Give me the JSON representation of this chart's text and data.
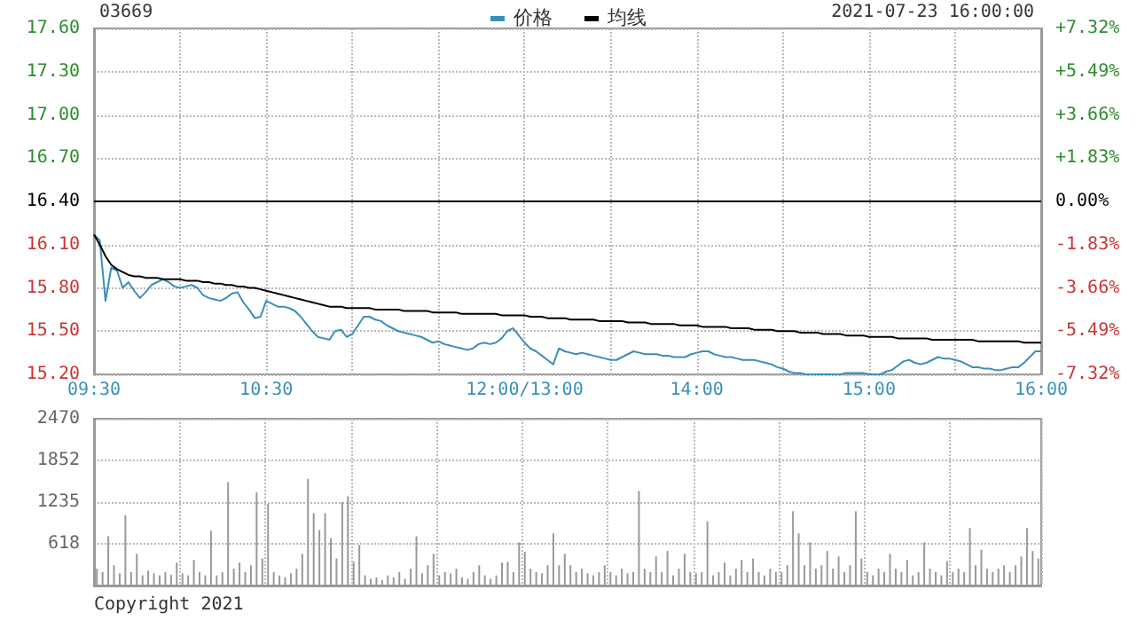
{
  "chart_data": [
    {
      "type": "line",
      "title": "03669",
      "annotations": [
        "2021-07-23 16:00:00"
      ],
      "legend": "top",
      "grid": true,
      "marker": "none",
      "line_style": "solid",
      "categories": [
        "09:30",
        null,
        null,
        null,
        null,
        null,
        null,
        null,
        null,
        null,
        null,
        null,
        null,
        null,
        null,
        null,
        null,
        null,
        null,
        null,
        null,
        null,
        null,
        null,
        null,
        null,
        null,
        null,
        null,
        null,
        "10:30",
        null,
        null,
        null,
        null,
        null,
        null,
        null,
        null,
        null,
        null,
        null,
        null,
        null,
        null,
        null,
        null,
        null,
        null,
        null,
        null,
        null,
        null,
        null,
        null,
        null,
        null,
        null,
        null,
        null,
        null,
        null,
        null,
        null,
        null,
        null,
        null,
        null,
        null,
        null,
        null,
        null,
        null,
        null,
        null,
        "12:00/13:00",
        null,
        null,
        null,
        null,
        null,
        null,
        null,
        null,
        null,
        null,
        null,
        null,
        null,
        null,
        null,
        null,
        null,
        null,
        null,
        null,
        null,
        null,
        null,
        null,
        null,
        null,
        null,
        null,
        null,
        "14:00",
        null,
        null,
        null,
        null,
        null,
        null,
        null,
        null,
        null,
        null,
        null,
        null,
        null,
        null,
        null,
        null,
        null,
        null,
        null,
        null,
        null,
        null,
        null,
        null,
        null,
        null,
        null,
        null,
        null,
        "15:00",
        null,
        null,
        null,
        null,
        null,
        null,
        null,
        null,
        null,
        null,
        null,
        null,
        null,
        null,
        null,
        null,
        null,
        null,
        null,
        null,
        null,
        null,
        null,
        null,
        null,
        null,
        null,
        null,
        null,
        "16:00"
      ],
      "ylim": [
        15.2,
        17.6
      ],
      "yticks": [
        {
          "value": 15.2,
          "label": "15.20"
        },
        {
          "value": 15.5,
          "label": "15.50"
        },
        {
          "value": 15.8,
          "label": "15.80"
        },
        {
          "value": 16.1,
          "label": "16.10"
        },
        {
          "value": 16.4,
          "label": "16.40"
        },
        {
          "value": 16.7,
          "label": "16.70"
        },
        {
          "value": 17.0,
          "label": "17.00"
        },
        {
          "value": 17.3,
          "label": "17.30"
        },
        {
          "value": 17.6,
          "label": "17.60"
        }
      ],
      "y2lim": [
        -7.32,
        7.32
      ],
      "y2ticks": [
        {
          "value": -7.32,
          "label": "-7.32%"
        },
        {
          "value": -5.49,
          "label": "-5.49%"
        },
        {
          "value": -3.66,
          "label": "-3.66%"
        },
        {
          "value": -1.83,
          "label": "-1.83%"
        },
        {
          "value": 0,
          "label": "0.00%"
        },
        {
          "value": 1.83,
          "label": "+1.83%"
        },
        {
          "value": 3.66,
          "label": "+3.66%"
        },
        {
          "value": 5.49,
          "label": "+5.49%"
        },
        {
          "value": 7.32,
          "label": "+7.32%"
        }
      ],
      "ref_lines": [
        {
          "axis": "y",
          "value": 16.4,
          "color": "#000000"
        }
      ],
      "series": [
        {
          "name": "价格",
          "color": "#3a8fb7",
          "values": [
            16.17,
            16.13,
            15.71,
            15.94,
            15.92,
            15.8,
            15.84,
            15.78,
            15.73,
            15.77,
            15.82,
            15.84,
            15.86,
            15.84,
            15.81,
            15.8,
            15.81,
            15.82,
            15.8,
            15.75,
            15.73,
            15.72,
            15.71,
            15.73,
            15.76,
            15.77,
            15.7,
            15.65,
            15.59,
            15.6,
            15.71,
            15.69,
            15.67,
            15.67,
            15.66,
            15.64,
            15.6,
            15.55,
            15.5,
            15.46,
            15.45,
            15.44,
            15.5,
            15.51,
            15.46,
            15.48,
            15.54,
            15.6,
            15.6,
            15.58,
            15.57,
            15.54,
            15.52,
            15.5,
            15.49,
            15.48,
            15.47,
            15.46,
            15.44,
            15.42,
            15.43,
            15.41,
            15.4,
            15.39,
            15.38,
            15.37,
            15.38,
            15.41,
            15.42,
            15.41,
            15.42,
            15.45,
            15.5,
            15.52,
            15.47,
            15.42,
            15.38,
            15.36,
            15.33,
            15.3,
            15.27,
            15.38,
            15.36,
            15.35,
            15.34,
            15.35,
            15.34,
            15.33,
            15.32,
            15.31,
            15.3,
            15.3,
            15.32,
            15.34,
            15.36,
            15.35,
            15.34,
            15.34,
            15.34,
            15.33,
            15.33,
            15.32,
            15.32,
            15.32,
            15.34,
            15.35,
            15.36,
            15.36,
            15.34,
            15.33,
            15.32,
            15.32,
            15.31,
            15.3,
            15.3,
            15.3,
            15.29,
            15.28,
            15.27,
            15.25,
            15.24,
            15.22,
            15.21,
            15.21,
            15.2,
            15.2,
            15.2,
            15.2,
            15.2,
            15.2,
            15.2,
            15.21,
            15.21,
            15.21,
            15.21,
            15.2,
            15.2,
            15.2,
            15.22,
            15.23,
            15.26,
            15.29,
            15.3,
            15.28,
            15.27,
            15.28,
            15.3,
            15.32,
            15.31,
            15.31,
            15.3,
            15.29,
            15.27,
            15.25,
            15.25,
            15.24,
            15.24,
            15.23,
            15.23,
            15.24,
            15.25,
            15.25,
            15.28,
            15.32,
            15.36,
            15.36
          ]
        },
        {
          "name": "均线",
          "color": "#000000",
          "values": [
            16.17,
            16.1,
            16.02,
            15.96,
            15.93,
            15.91,
            15.89,
            15.88,
            15.88,
            15.87,
            15.87,
            15.87,
            15.86,
            15.86,
            15.86,
            15.86,
            15.85,
            15.85,
            15.85,
            15.84,
            15.84,
            15.83,
            15.83,
            15.82,
            15.82,
            15.81,
            15.81,
            15.8,
            15.8,
            15.79,
            15.78,
            15.77,
            15.76,
            15.75,
            15.74,
            15.73,
            15.72,
            15.71,
            15.7,
            15.69,
            15.68,
            15.67,
            15.67,
            15.67,
            15.66,
            15.66,
            15.66,
            15.66,
            15.66,
            15.65,
            15.65,
            15.65,
            15.65,
            15.65,
            15.64,
            15.64,
            15.64,
            15.64,
            15.64,
            15.63,
            15.63,
            15.63,
            15.63,
            15.63,
            15.62,
            15.62,
            15.62,
            15.62,
            15.62,
            15.62,
            15.62,
            15.61,
            15.61,
            15.61,
            15.61,
            15.61,
            15.6,
            15.6,
            15.6,
            15.59,
            15.59,
            15.59,
            15.59,
            15.58,
            15.58,
            15.58,
            15.58,
            15.58,
            15.57,
            15.57,
            15.57,
            15.57,
            15.57,
            15.56,
            15.56,
            15.56,
            15.56,
            15.55,
            15.55,
            15.55,
            15.55,
            15.55,
            15.54,
            15.54,
            15.54,
            15.54,
            15.53,
            15.53,
            15.53,
            15.53,
            15.53,
            15.52,
            15.52,
            15.52,
            15.52,
            15.51,
            15.51,
            15.51,
            15.51,
            15.5,
            15.5,
            15.5,
            15.5,
            15.49,
            15.49,
            15.49,
            15.49,
            15.48,
            15.48,
            15.48,
            15.48,
            15.47,
            15.47,
            15.47,
            15.47,
            15.46,
            15.46,
            15.46,
            15.46,
            15.46,
            15.45,
            15.45,
            15.45,
            15.45,
            15.45,
            15.45,
            15.44,
            15.44,
            15.44,
            15.44,
            15.44,
            15.44,
            15.44,
            15.44,
            15.43,
            15.43,
            15.43,
            15.43,
            15.43,
            15.43,
            15.43,
            15.43,
            15.42,
            15.42,
            15.42,
            15.42
          ]
        }
      ]
    },
    {
      "type": "bar",
      "annotations": [
        "Copyright 2021"
      ],
      "grid": true,
      "tick_labels": "y",
      "color": "#999999",
      "categories": [
        null,
        null,
        null,
        null,
        null,
        null,
        null,
        null,
        null,
        null,
        null,
        null,
        null,
        null,
        null,
        null,
        null,
        null,
        null,
        null,
        null,
        null,
        null,
        null,
        null,
        null,
        null,
        null,
        null,
        null,
        null,
        null,
        null,
        null,
        null,
        null,
        null,
        null,
        null,
        null,
        null,
        null,
        null,
        null,
        null,
        null,
        null,
        null,
        null,
        null,
        null,
        null,
        null,
        null,
        null,
        null,
        null,
        null,
        null,
        null,
        null,
        null,
        null,
        null,
        null,
        null,
        null,
        null,
        null,
        null,
        null,
        null,
        null,
        null,
        null,
        null,
        null,
        null,
        null,
        null,
        null,
        null,
        null,
        null,
        null,
        null,
        null,
        null,
        null,
        null,
        null,
        null,
        null,
        null,
        null,
        null,
        null,
        null,
        null,
        null,
        null,
        null,
        null,
        null,
        null,
        null,
        null,
        null,
        null,
        null,
        null,
        null,
        null,
        null,
        null,
        null,
        null,
        null,
        null,
        null,
        null,
        null,
        null,
        null,
        null,
        null,
        null,
        null,
        null,
        null,
        null,
        null,
        null,
        null,
        null,
        null,
        null,
        null,
        null,
        null,
        null,
        null,
        null,
        null,
        null,
        null,
        null,
        null,
        null,
        null,
        null,
        null,
        null,
        null,
        null,
        null,
        null,
        null,
        null,
        null,
        null,
        null,
        null,
        null,
        null,
        null
      ],
      "ylim": [
        0,
        2470
      ],
      "yticks": [
        618,
        1235,
        1852,
        2470
      ],
      "values": [
        250,
        200,
        730,
        300,
        180,
        1040,
        200,
        470,
        150,
        220,
        180,
        150,
        200,
        160,
        340,
        180,
        150,
        380,
        200,
        150,
        810,
        150,
        200,
        1530,
        250,
        340,
        200,
        300,
        1380,
        400,
        1210,
        200,
        150,
        120,
        180,
        250,
        470,
        1580,
        1070,
        820,
        1070,
        700,
        400,
        1240,
        1320,
        350,
        600,
        150,
        100,
        120,
        80,
        150,
        120,
        200,
        100,
        250,
        730,
        180,
        300,
        470,
        150,
        200,
        180,
        250,
        120,
        100,
        200,
        300,
        150,
        100,
        150,
        340,
        350,
        200,
        640,
        500,
        250,
        200,
        180,
        300,
        770,
        300,
        470,
        300,
        200,
        250,
        180,
        150,
        200,
        300,
        200,
        150,
        250,
        180,
        200,
        1400,
        250,
        200,
        430,
        200,
        510,
        150,
        250,
        470,
        200,
        180,
        200,
        950,
        150,
        200,
        340,
        150,
        250,
        380,
        200,
        400,
        200,
        150,
        250,
        200,
        200,
        300,
        1100,
        770,
        300,
        640,
        250,
        300,
        510,
        250,
        430,
        200,
        300,
        1100,
        400,
        200,
        150,
        250,
        200,
        470,
        250,
        200,
        380,
        150,
        200,
        640,
        250,
        200,
        150,
        360,
        200,
        250,
        200,
        850,
        300,
        530,
        250,
        200,
        250,
        300,
        200,
        300,
        430,
        850,
        510,
        400
      ]
    }
  ]
}
